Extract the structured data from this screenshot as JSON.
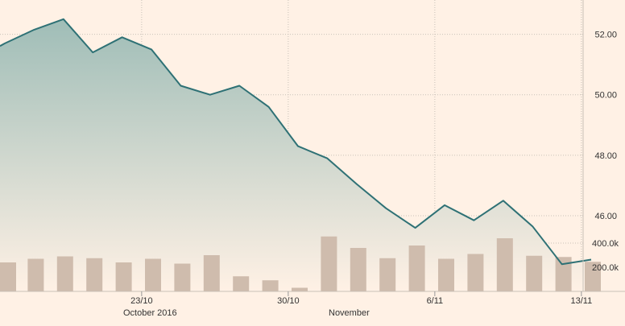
{
  "chart_data": {
    "type": "line",
    "colors": {
      "background": "#fff1e5",
      "line": "#2e7175",
      "area_top": "#9fbdb7",
      "volume_bar": "#cfbcad",
      "grid": "#c9c1b8"
    },
    "x": [
      "2016-10-17",
      "2016-10-18",
      "2016-10-19",
      "2016-10-20",
      "2016-10-21",
      "2016-10-24",
      "2016-10-25",
      "2016-10-26",
      "2016-10-27",
      "2016-10-28",
      "2016-10-31",
      "2016-11-01",
      "2016-11-02",
      "2016-11-03",
      "2016-11-04",
      "2016-11-07",
      "2016-11-08",
      "2016-11-09",
      "2016-11-10",
      "2016-11-11",
      "2016-11-14"
    ],
    "series": [
      {
        "values": [
          51.7,
          52.15,
          52.5,
          51.4,
          51.9,
          51.5,
          50.3,
          50.0,
          50.3,
          49.6,
          48.3,
          47.9,
          47.05,
          46.25,
          45.6,
          46.35,
          45.85,
          46.5,
          45.65,
          44.4,
          44.55
        ]
      }
    ],
    "volume": [
      240000,
      270000,
      290000,
      275000,
      240000,
      270000,
      230000,
      300000,
      125000,
      92000,
      30000,
      455000,
      360000,
      275000,
      380000,
      270000,
      310000,
      440000,
      295000,
      285000,
      245000
    ],
    "y_ticks": [
      "46.00",
      "48.00",
      "50.00",
      "52.00"
    ],
    "volume_ticks": [
      "200.0k",
      "400.0k"
    ],
    "x_ticks": [
      "23/10",
      "30/10",
      "6/11",
      "13/11"
    ],
    "period_labels": [
      "October 2016",
      "November"
    ],
    "ylim": [
      43.5,
      53.0
    ],
    "volume_lim": [
      0,
      460000
    ],
    "grid": true,
    "y_axis_position": "right"
  }
}
